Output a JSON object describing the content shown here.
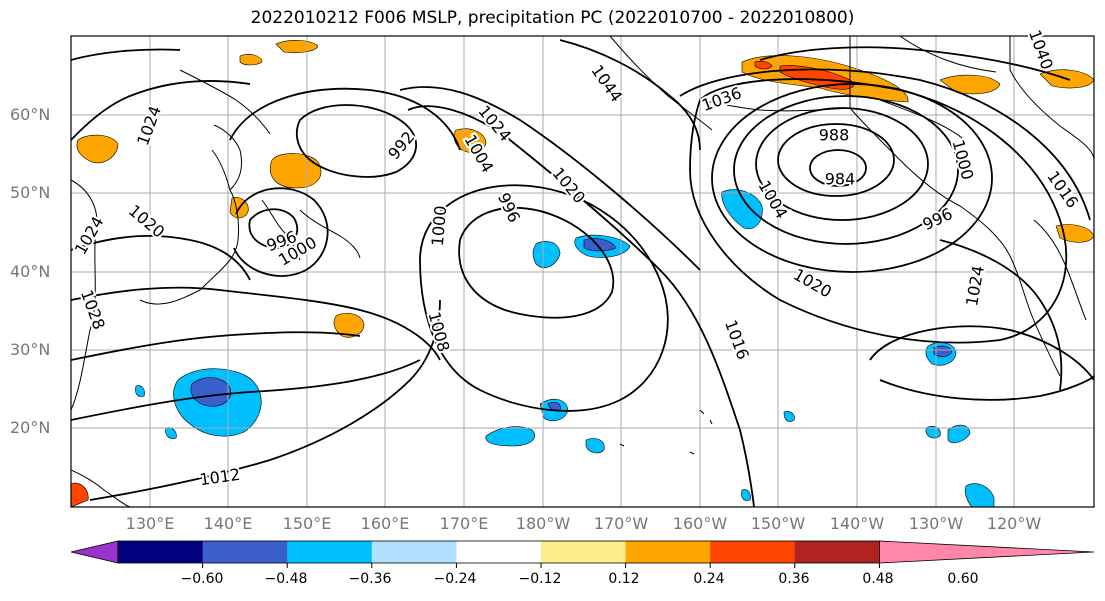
{
  "title": "2022010212 F006 MSLP, precipitation PC (2022010700 - 2022010800)",
  "lat_labels": [
    "60°N",
    "50°N",
    "40°N",
    "30°N",
    "20°N"
  ],
  "lon_labels": [
    "130°E",
    "140°E",
    "150°E",
    "160°E",
    "170°E",
    "180°W",
    "170°W",
    "160°W",
    "150°W",
    "140°W",
    "130°W",
    "120°W"
  ],
  "isobar_labels": [
    {
      "text": "1024"
    },
    {
      "text": "1020"
    },
    {
      "text": "1024"
    },
    {
      "text": "1028"
    },
    {
      "text": "996"
    },
    {
      "text": "1000"
    },
    {
      "text": "992"
    },
    {
      "text": "1024"
    },
    {
      "text": "1004"
    },
    {
      "text": "996"
    },
    {
      "text": "1020"
    },
    {
      "text": "1000"
    },
    {
      "text": "1008"
    },
    {
      "text": "1012"
    },
    {
      "text": "1016"
    },
    {
      "text": "1020"
    },
    {
      "text": "988"
    },
    {
      "text": "984"
    },
    {
      "text": "996"
    },
    {
      "text": "1004"
    },
    {
      "text": "1036"
    },
    {
      "text": "1044"
    },
    {
      "text": "1040"
    },
    {
      "text": "1000"
    },
    {
      "text": "1024"
    },
    {
      "text": "1016"
    }
  ],
  "colorbar": {
    "ticks": [
      "−0.60",
      "−0.48",
      "−0.36",
      "−0.24",
      "−0.12",
      "0.12",
      "0.24",
      "0.36",
      "0.48",
      "0.60"
    ],
    "colors": [
      "#9a32cd",
      "#000080",
      "#3a5fcd",
      "#00bfff",
      "#b0e2ff",
      "#ffffff",
      "#ffec8b",
      "#ffa500",
      "#ff4500",
      "#b22222",
      "#ff88aa"
    ]
  }
}
